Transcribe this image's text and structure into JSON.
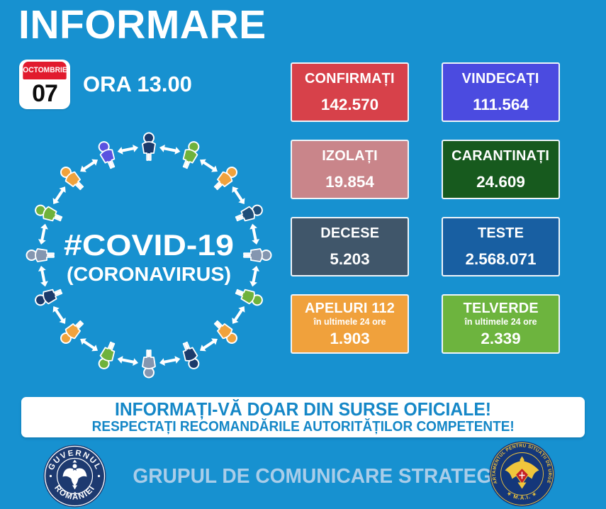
{
  "title": "INFORMARE",
  "date": {
    "month": "OCTOMBRIE",
    "day": "07",
    "time_label": "ORA 13.00"
  },
  "diagram": {
    "line1": "#COVID-19",
    "line2": "(CORONAVIRUS)",
    "arrow_color": "#ffffff",
    "people_colors": [
      "#1b3a6b",
      "#6fb23c",
      "#f0a23c",
      "#1f4e79",
      "#8496b0",
      "#6fb23c",
      "#f0a23c",
      "#1b3a6b",
      "#8496b0",
      "#6fb23c",
      "#f0a23c",
      "#1b3a6b",
      "#8496b0",
      "#6fb23c",
      "#f0a23c",
      "#5a52e0"
    ]
  },
  "stats": [
    {
      "id": "confirmati",
      "label": "CONFIRMAȚI",
      "value": "142.570",
      "color": "#d7414a"
    },
    {
      "id": "vindecati",
      "label": "VINDECAȚI",
      "value": "111.564",
      "color": "#4b4be0"
    },
    {
      "id": "izolati",
      "label": "IZOLAȚI",
      "value": "19.854",
      "color": "#c9858a"
    },
    {
      "id": "carantinati",
      "label": "CARANTINAȚI",
      "value": "24.609",
      "color": "#175a1e"
    },
    {
      "id": "decese",
      "label": "DECESE",
      "value": "5.203",
      "color": "#40566a"
    },
    {
      "id": "teste",
      "label": "TESTE",
      "value": "2.568.071",
      "color": "#185fa2"
    },
    {
      "id": "apeluri-112",
      "label": "APELURI 112",
      "sublabel": "în ultimele 24 ore",
      "value": "1.903",
      "color": "#f0a13c"
    },
    {
      "id": "telverde",
      "label": "TELVERDE",
      "sublabel": "în ultimele 24 ore",
      "value": "2.339",
      "color": "#6db43e"
    }
  ],
  "banner": {
    "line1": "INFORMAȚI-VĂ DOAR DIN SURSE OFICIALE!",
    "line2": "RESPECTAȚI RECOMANDĂRILE AUTORITĂȚILOR COMPETENTE!"
  },
  "footer": {
    "text": "GRUPUL DE COMUNICARE STRATEGICĂ",
    "left_logo": {
      "top": "GUVERNUL",
      "bottom": "ROMÂNIEI"
    },
    "right_logo": {
      "top": "DEPARTAMENTUL PENTRU SITUAȚII DE URGENȚĂ",
      "bottom": "✶ M.A.I. ✶"
    }
  },
  "colors": {
    "background": "#1791d0",
    "accent_text": "#1587c7",
    "footer_text": "#a9cde9",
    "calendar_red": "#e11b2e",
    "gov_logo_navy": "#1d3a70",
    "dsu_logo_navy": "#14377a",
    "dsu_gold": "#f0c63c"
  }
}
